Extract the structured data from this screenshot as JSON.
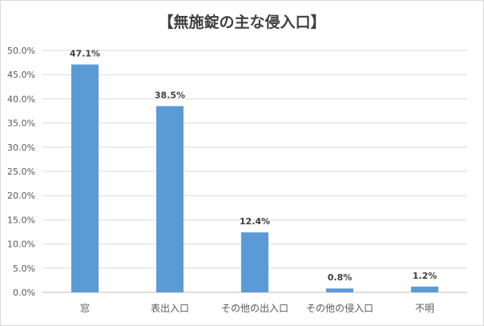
{
  "chart_data": {
    "type": "bar",
    "title": "【無施錠の主な侵入口】",
    "categories": [
      "窓",
      "表出入口",
      "その他の出入口",
      "その他の侵入口",
      "不明"
    ],
    "values": [
      47.1,
      38.5,
      12.4,
      0.8,
      1.2
    ],
    "data_labels": [
      "47.1%",
      "38.5%",
      "12.4%",
      "0.8%",
      "1.2%"
    ],
    "y_ticks": [
      0,
      5,
      10,
      15,
      20,
      25,
      30,
      35,
      40,
      45,
      50
    ],
    "y_tick_labels": [
      "0.0%",
      "5.0%",
      "10.0%",
      "15.0%",
      "20.0%",
      "25.0%",
      "30.0%",
      "35.0%",
      "40.0%",
      "45.0%",
      "50.0%"
    ],
    "ylim": [
      0,
      50
    ],
    "grid": true,
    "bar_color": "#5b9bd5",
    "grid_color": "#d9d9d9"
  }
}
